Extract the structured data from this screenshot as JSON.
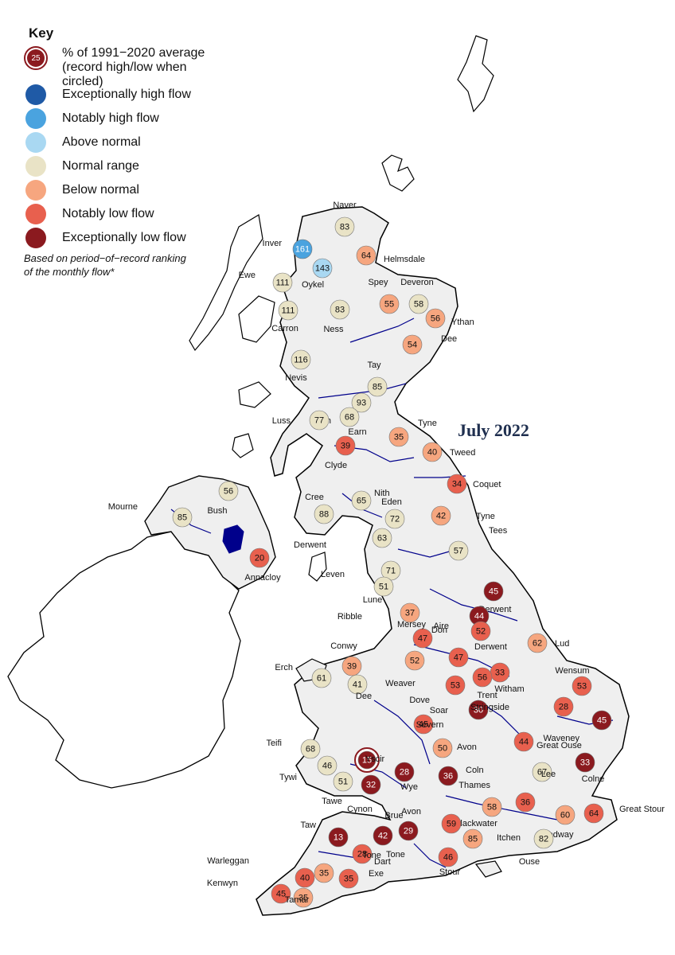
{
  "title": "July 2022",
  "legend": {
    "heading": "Key",
    "record_example": {
      "value": "25",
      "label": "% of 1991−2020 average\n(record high/low when circled)"
    },
    "categories": [
      {
        "id": "exc_high",
        "label": "Exceptionally high flow",
        "color": "#1f5aa6"
      },
      {
        "id": "not_high",
        "label": "Notably high flow",
        "color": "#4aa3df"
      },
      {
        "id": "above",
        "label": "Above normal",
        "color": "#a9d8f2"
      },
      {
        "id": "normal",
        "label": "Normal range",
        "color": "#e9e3c6"
      },
      {
        "id": "below",
        "label": "Below normal",
        "color": "#f6a67f"
      },
      {
        "id": "not_low",
        "label": "Notably low flow",
        "color": "#e8604e"
      },
      {
        "id": "exc_low",
        "label": "Exceptionally low flow",
        "color": "#8b1a1f"
      }
    ],
    "note": "Based on period−of−record ranking\nof the monthly flow*"
  },
  "sites": [
    {
      "river": "Naver",
      "value": "83",
      "cat": "normal"
    },
    {
      "river": "Inver",
      "value": "161",
      "cat": "not_high"
    },
    {
      "river": "Helmsdale",
      "value": "64",
      "cat": "below"
    },
    {
      "river": "Oykel",
      "value": "143",
      "cat": "above"
    },
    {
      "river": "Ewe",
      "value": "111",
      "cat": "normal"
    },
    {
      "river": "Spey",
      "value": "55",
      "cat": "below"
    },
    {
      "river": "Deveron",
      "value": "58",
      "cat": "normal"
    },
    {
      "river": "Ness",
      "value": "83",
      "cat": "normal"
    },
    {
      "river": "Carron",
      "value": "111",
      "cat": "normal"
    },
    {
      "river": "Ythan",
      "value": "56",
      "cat": "below"
    },
    {
      "river": "Dee",
      "value": "54",
      "cat": "below"
    },
    {
      "river": "Nevis",
      "value": "116",
      "cat": "normal"
    },
    {
      "river": "Tay",
      "value": "85",
      "cat": "normal"
    },
    {
      "river": "Forth",
      "value": "93",
      "cat": "normal"
    },
    {
      "river": "Luss",
      "value": "77",
      "cat": "normal"
    },
    {
      "river": "Earn",
      "value": "68",
      "cat": "normal"
    },
    {
      "river": "Tyne",
      "value": "35",
      "cat": "below"
    },
    {
      "river": "Tweed",
      "value": "40",
      "cat": "below"
    },
    {
      "river": "Clyde",
      "value": "39",
      "cat": "not_low"
    },
    {
      "river": "Coquet",
      "value": "34",
      "cat": "not_low"
    },
    {
      "river": "Bush",
      "value": "56",
      "cat": "normal"
    },
    {
      "river": "Mourne",
      "value": "85",
      "cat": "normal"
    },
    {
      "river": "Cree",
      "value": "88",
      "cat": "normal"
    },
    {
      "river": "Nith",
      "value": "65",
      "cat": "normal"
    },
    {
      "river": "Eden",
      "value": "72",
      "cat": "normal"
    },
    {
      "river": "Tyne",
      "value": "42",
      "cat": "below"
    },
    {
      "river": "Derwent",
      "value": "63",
      "cat": "normal"
    },
    {
      "river": "Tees",
      "value": "57",
      "cat": "normal"
    },
    {
      "river": "Annacloy",
      "value": "20",
      "cat": "not_low"
    },
    {
      "river": "Leven",
      "value": "71",
      "cat": "normal"
    },
    {
      "river": "Lune",
      "value": "51",
      "cat": "normal"
    },
    {
      "river": "Derwent",
      "value": "45",
      "cat": "exc_low"
    },
    {
      "river": "Ribble",
      "value": "37",
      "cat": "below"
    },
    {
      "river": "Aire",
      "value": "44",
      "cat": "exc_low"
    },
    {
      "river": "Don",
      "value": "52",
      "cat": "not_low"
    },
    {
      "river": "Mersey",
      "value": "47",
      "cat": "not_low"
    },
    {
      "river": "Lud",
      "value": "62",
      "cat": "below"
    },
    {
      "river": "Conwy",
      "value": "39",
      "cat": "below"
    },
    {
      "river": "Weaver",
      "value": "52",
      "cat": "below"
    },
    {
      "river": "Derwent",
      "value": "47",
      "cat": "not_low"
    },
    {
      "river": "Erch",
      "value": "61",
      "cat": "normal"
    },
    {
      "river": "Dee",
      "value": "41",
      "cat": "normal"
    },
    {
      "river": "Witham",
      "value": "33",
      "cat": "not_low"
    },
    {
      "river": "Trent",
      "value": "56",
      "cat": "not_low"
    },
    {
      "river": "Wensum",
      "value": "53",
      "cat": "not_low"
    },
    {
      "river": "Dove",
      "value": "53",
      "cat": "not_low"
    },
    {
      "river": "Soar",
      "value": "30",
      "cat": "exc_low"
    },
    {
      "river": "Stringside",
      "value": "28",
      "cat": "not_low"
    },
    {
      "river": "Severn",
      "value": "45",
      "cat": "not_low"
    },
    {
      "river": "Waveney",
      "value": "45",
      "cat": "exc_low"
    },
    {
      "river": "Great Ouse",
      "value": "44",
      "cat": "not_low"
    },
    {
      "river": "Teifi",
      "value": "68",
      "cat": "normal"
    },
    {
      "river": "Avon",
      "value": "50",
      "cat": "below"
    },
    {
      "river": "Tywi",
      "value": "46",
      "cat": "normal"
    },
    {
      "river": "Yscir",
      "value": "15",
      "cat": "exc_low",
      "record": true
    },
    {
      "river": "Coln",
      "value": "36",
      "cat": "exc_low"
    },
    {
      "river": "Wye",
      "value": "28",
      "cat": "exc_low"
    },
    {
      "river": "Colne",
      "value": "33",
      "cat": "exc_low"
    },
    {
      "river": "Tawe",
      "value": "51",
      "cat": "normal"
    },
    {
      "river": "Cynon",
      "value": "32",
      "cat": "exc_low"
    },
    {
      "river": "Lee",
      "value": "67",
      "cat": "normal"
    },
    {
      "river": "Thames",
      "value": "36",
      "cat": "not_low"
    },
    {
      "river": "Blackwater",
      "value": "58",
      "cat": "below"
    },
    {
      "river": "Medway",
      "value": "60",
      "cat": "below"
    },
    {
      "river": "Great Stour",
      "value": "64",
      "cat": "not_low"
    },
    {
      "river": "Avon",
      "value": "59",
      "cat": "not_low"
    },
    {
      "river": "Taw",
      "value": "13",
      "cat": "exc_low"
    },
    {
      "river": "Brue",
      "value": "29",
      "cat": "exc_low"
    },
    {
      "river": "Itchen",
      "value": "85",
      "cat": "below"
    },
    {
      "river": "Ouse",
      "value": "82",
      "cat": "normal"
    },
    {
      "river": "Tone",
      "value": "28",
      "cat": "not_low"
    },
    {
      "river": "Stour",
      "value": "46",
      "cat": "not_low"
    },
    {
      "river": "Warleggan",
      "value": "40",
      "cat": "not_low"
    },
    {
      "river": "Exe",
      "value": "35",
      "cat": "below"
    },
    {
      "river": "Dart",
      "value": "35",
      "cat": "not_low"
    },
    {
      "river": "Kenwyn",
      "value": "45",
      "cat": "not_low"
    },
    {
      "river": "Tamar",
      "value": "35",
      "cat": "below"
    },
    {
      "river": "Tone",
      "value": "42",
      "cat": "exc_low"
    }
  ]
}
